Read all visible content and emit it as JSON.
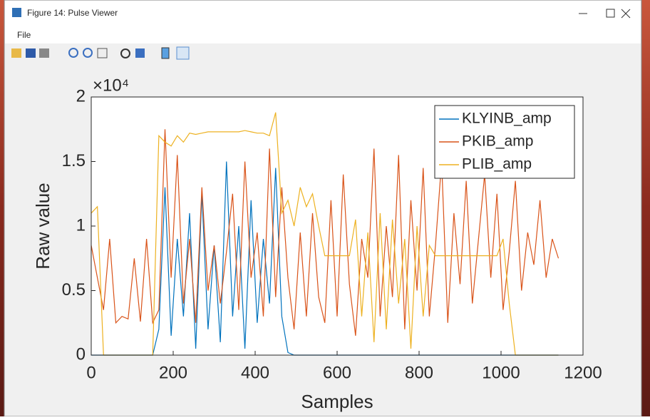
{
  "window": {
    "title": "Figure 14: Pulse Viewer",
    "menu": [
      "File"
    ]
  },
  "chart_data": {
    "type": "line",
    "xlabel": "Samples",
    "ylabel": "Raw value",
    "y_exponent": "×10⁴",
    "xlim": [
      0,
      1200
    ],
    "xticks": [
      0,
      200,
      400,
      600,
      800,
      1000,
      1200
    ],
    "ylim": [
      0,
      20000
    ],
    "yticks": [
      0,
      {
        "value": 5000,
        "label": "0.5"
      },
      {
        "value": 10000,
        "label": "1"
      },
      {
        "value": 15000,
        "label": "1.5"
      },
      {
        "value": 20000,
        "label": "2"
      }
    ],
    "legend": "northeast",
    "grid": false,
    "x": [
      0,
      15,
      30,
      45,
      60,
      75,
      90,
      105,
      120,
      135,
      150,
      165,
      180,
      195,
      210,
      225,
      240,
      255,
      270,
      285,
      300,
      315,
      330,
      345,
      360,
      375,
      390,
      405,
      420,
      435,
      450,
      465,
      480,
      495,
      510,
      525,
      540,
      555,
      570,
      585,
      600,
      615,
      630,
      645,
      660,
      675,
      690,
      705,
      720,
      735,
      750,
      765,
      780,
      795,
      810,
      825,
      840,
      855,
      870,
      885,
      900,
      915,
      930,
      945,
      960,
      975,
      990,
      1005,
      1020,
      1035,
      1050,
      1065,
      1080,
      1095,
      1110,
      1125,
      1140
    ],
    "series": [
      {
        "name": "KLYINB_amp",
        "color": "#0072bd",
        "values": [
          0,
          0,
          0,
          0,
          0,
          0,
          0,
          0,
          0,
          0,
          0,
          2000,
          13000,
          1500,
          9000,
          3000,
          11000,
          500,
          12500,
          2000,
          8500,
          1000,
          15000,
          3000,
          10000,
          500,
          12000,
          2500,
          9000,
          4000,
          14500,
          3000,
          200,
          0,
          0,
          0,
          0,
          0,
          0,
          0,
          0,
          0,
          0,
          0,
          0,
          0,
          0,
          0,
          0,
          0,
          0,
          0,
          0,
          0,
          0,
          0,
          0,
          0,
          0,
          0,
          0,
          0,
          0,
          0,
          0,
          0,
          0,
          0,
          0,
          0,
          0,
          0,
          0,
          0,
          0,
          0,
          0
        ]
      },
      {
        "name": "PKIB_amp",
        "color": "#d95319",
        "values": [
          8500,
          6000,
          3500,
          9000,
          2500,
          3000,
          2800,
          7500,
          2600,
          9000,
          2500,
          3500,
          17500,
          6000,
          15500,
          4000,
          9000,
          2500,
          13000,
          5000,
          8500,
          4000,
          8000,
          12500,
          3500,
          15000,
          6000,
          9500,
          3000,
          16000,
          4500,
          13000,
          6000,
          2000,
          9500,
          3000,
          11000,
          4500,
          2500,
          12000,
          3000,
          14000,
          5500,
          1500,
          9000,
          6000,
          16000,
          3000,
          10000,
          4500,
          15500,
          2000,
          12000,
          5000,
          14500,
          3000,
          8500,
          15000,
          2500,
          11000,
          5500,
          13500,
          4000,
          9000,
          14000,
          6000,
          12500,
          3500,
          8000,
          13500,
          5000,
          9500,
          7000,
          12000,
          6000,
          9000,
          7500
        ]
      },
      {
        "name": "PLIB_amp",
        "color": "#edb120",
        "values": [
          11000,
          11500,
          0,
          0,
          0,
          0,
          0,
          0,
          0,
          0,
          0,
          17000,
          16500,
          16200,
          17000,
          16500,
          17200,
          17100,
          17200,
          17300,
          17300,
          17300,
          17300,
          17300,
          17300,
          17400,
          17300,
          17200,
          17200,
          17000,
          18800,
          11000,
          12000,
          10000,
          13000,
          11500,
          12500,
          10000,
          7700,
          7700,
          7700,
          7700,
          7700,
          10500,
          3000,
          9500,
          1000,
          11000,
          2000,
          10500,
          4000,
          9000,
          500,
          10000,
          3000,
          8500,
          7700,
          7700,
          7700,
          7700,
          7700,
          7700,
          7700,
          7700,
          7700,
          7700,
          7700,
          9000,
          4000,
          0,
          0,
          0,
          0,
          0,
          0,
          0,
          0
        ]
      }
    ]
  }
}
